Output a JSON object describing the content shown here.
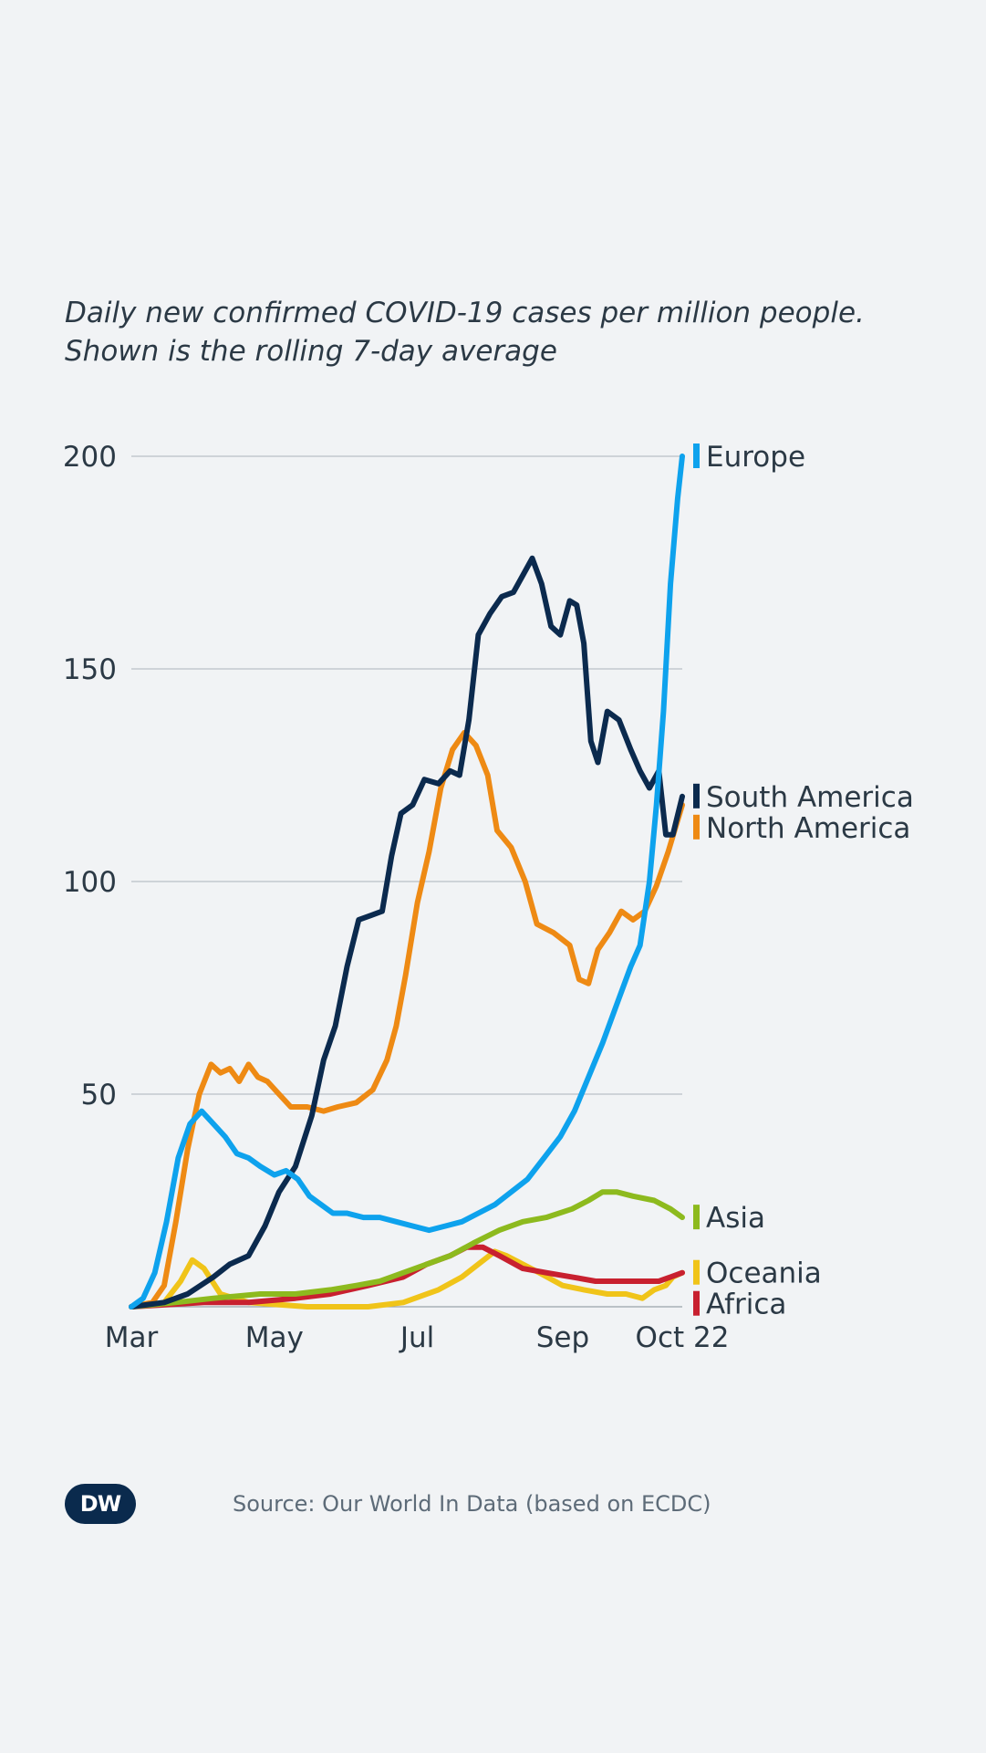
{
  "subtitle_line1": "Daily new confirmed COVID-19 cases per million people.",
  "subtitle_line2": "Shown is the rolling 7-day average",
  "source": "Source: Our World In Data (based on ECDC)",
  "logo_text": "DW",
  "chart_data": {
    "type": "line",
    "ylim": [
      0,
      200
    ],
    "yticks": [
      50,
      100,
      150,
      200
    ],
    "xlim": [
      "2020-03-01",
      "2020-10-22"
    ],
    "xticks": [
      {
        "date": "2020-03-01",
        "label": "Mar"
      },
      {
        "date": "2020-05-01",
        "label": "May"
      },
      {
        "date": "2020-07-01",
        "label": "Jul"
      },
      {
        "date": "2020-09-01",
        "label": "Sep"
      },
      {
        "date": "2020-10-22",
        "label": "Oct 22"
      }
    ],
    "grid": true,
    "legend": "right, at series end",
    "series": [
      {
        "name": "Oceania",
        "color": "#f0c419",
        "points": [
          [
            "2020-03-01",
            0
          ],
          [
            "2020-03-15",
            1
          ],
          [
            "2020-03-22",
            6
          ],
          [
            "2020-03-27",
            11
          ],
          [
            "2020-04-01",
            9
          ],
          [
            "2020-04-08",
            3
          ],
          [
            "2020-04-20",
            1
          ],
          [
            "2020-05-15",
            0
          ],
          [
            "2020-06-10",
            0
          ],
          [
            "2020-06-25",
            1
          ],
          [
            "2020-07-10",
            4
          ],
          [
            "2020-07-20",
            7
          ],
          [
            "2020-07-27",
            10
          ],
          [
            "2020-08-03",
            13
          ],
          [
            "2020-08-08",
            12
          ],
          [
            "2020-08-15",
            10
          ],
          [
            "2020-08-22",
            8
          ],
          [
            "2020-09-01",
            5
          ],
          [
            "2020-09-10",
            4
          ],
          [
            "2020-09-20",
            3
          ],
          [
            "2020-09-28",
            3
          ],
          [
            "2020-10-05",
            2
          ],
          [
            "2020-10-10",
            4
          ],
          [
            "2020-10-15",
            5
          ],
          [
            "2020-10-18",
            7
          ],
          [
            "2020-10-22",
            8
          ]
        ]
      },
      {
        "name": "Africa",
        "color": "#c8202f",
        "points": [
          [
            "2020-03-01",
            0
          ],
          [
            "2020-04-01",
            1
          ],
          [
            "2020-04-20",
            1
          ],
          [
            "2020-05-10",
            2
          ],
          [
            "2020-05-25",
            3
          ],
          [
            "2020-06-10",
            5
          ],
          [
            "2020-06-25",
            7
          ],
          [
            "2020-07-05",
            10
          ],
          [
            "2020-07-15",
            12
          ],
          [
            "2020-07-22",
            14
          ],
          [
            "2020-07-29",
            14
          ],
          [
            "2020-08-05",
            12
          ],
          [
            "2020-08-15",
            9
          ],
          [
            "2020-08-25",
            8
          ],
          [
            "2020-09-05",
            7
          ],
          [
            "2020-09-15",
            6
          ],
          [
            "2020-09-25",
            6
          ],
          [
            "2020-10-05",
            6
          ],
          [
            "2020-10-12",
            6
          ],
          [
            "2020-10-17",
            7
          ],
          [
            "2020-10-22",
            8
          ]
        ]
      },
      {
        "name": "Asia",
        "color": "#8dba1e",
        "points": [
          [
            "2020-03-01",
            0
          ],
          [
            "2020-03-20",
            1
          ],
          [
            "2020-04-05",
            2
          ],
          [
            "2020-04-25",
            3
          ],
          [
            "2020-05-10",
            3
          ],
          [
            "2020-05-25",
            4
          ],
          [
            "2020-06-05",
            5
          ],
          [
            "2020-06-15",
            6
          ],
          [
            "2020-06-25",
            8
          ],
          [
            "2020-07-05",
            10
          ],
          [
            "2020-07-15",
            12
          ],
          [
            "2020-07-25",
            15
          ],
          [
            "2020-08-05",
            18
          ],
          [
            "2020-08-15",
            20
          ],
          [
            "2020-08-25",
            21
          ],
          [
            "2020-09-05",
            23
          ],
          [
            "2020-09-12",
            25
          ],
          [
            "2020-09-18",
            27
          ],
          [
            "2020-09-24",
            27
          ],
          [
            "2020-10-01",
            26
          ],
          [
            "2020-10-10",
            25
          ],
          [
            "2020-10-17",
            23
          ],
          [
            "2020-10-22",
            21
          ]
        ]
      },
      {
        "name": "North America",
        "color": "#ee8a14",
        "points": [
          [
            "2020-03-01",
            0
          ],
          [
            "2020-03-10",
            1
          ],
          [
            "2020-03-15",
            5
          ],
          [
            "2020-03-20",
            20
          ],
          [
            "2020-03-25",
            37
          ],
          [
            "2020-03-30",
            50
          ],
          [
            "2020-04-04",
            57
          ],
          [
            "2020-04-08",
            55
          ],
          [
            "2020-04-12",
            56
          ],
          [
            "2020-04-16",
            53
          ],
          [
            "2020-04-20",
            57
          ],
          [
            "2020-04-24",
            54
          ],
          [
            "2020-04-28",
            53
          ],
          [
            "2020-05-03",
            50
          ],
          [
            "2020-05-08",
            47
          ],
          [
            "2020-05-15",
            47
          ],
          [
            "2020-05-22",
            46
          ],
          [
            "2020-05-28",
            47
          ],
          [
            "2020-06-05",
            48
          ],
          [
            "2020-06-12",
            51
          ],
          [
            "2020-06-18",
            58
          ],
          [
            "2020-06-22",
            66
          ],
          [
            "2020-06-26",
            78
          ],
          [
            "2020-07-01",
            95
          ],
          [
            "2020-07-06",
            107
          ],
          [
            "2020-07-11",
            122
          ],
          [
            "2020-07-16",
            131
          ],
          [
            "2020-07-21",
            135
          ],
          [
            "2020-07-26",
            132
          ],
          [
            "2020-07-31",
            125
          ],
          [
            "2020-08-04",
            112
          ],
          [
            "2020-08-10",
            108
          ],
          [
            "2020-08-16",
            100
          ],
          [
            "2020-08-21",
            90
          ],
          [
            "2020-08-28",
            88
          ],
          [
            "2020-09-04",
            85
          ],
          [
            "2020-09-08",
            77
          ],
          [
            "2020-09-12",
            76
          ],
          [
            "2020-09-16",
            84
          ],
          [
            "2020-09-21",
            88
          ],
          [
            "2020-09-26",
            93
          ],
          [
            "2020-10-01",
            91
          ],
          [
            "2020-10-06",
            93
          ],
          [
            "2020-10-11",
            99
          ],
          [
            "2020-10-16",
            107
          ],
          [
            "2020-10-22",
            118
          ]
        ]
      },
      {
        "name": "South America",
        "color": "#0b2a4e",
        "points": [
          [
            "2020-03-01",
            0
          ],
          [
            "2020-03-15",
            1
          ],
          [
            "2020-03-25",
            3
          ],
          [
            "2020-04-05",
            7
          ],
          [
            "2020-04-12",
            10
          ],
          [
            "2020-04-20",
            12
          ],
          [
            "2020-04-27",
            19
          ],
          [
            "2020-05-03",
            27
          ],
          [
            "2020-05-10",
            33
          ],
          [
            "2020-05-17",
            45
          ],
          [
            "2020-05-22",
            58
          ],
          [
            "2020-05-27",
            66
          ],
          [
            "2020-06-01",
            80
          ],
          [
            "2020-06-06",
            91
          ],
          [
            "2020-06-11",
            92
          ],
          [
            "2020-06-16",
            93
          ],
          [
            "2020-06-20",
            106
          ],
          [
            "2020-06-24",
            116
          ],
          [
            "2020-06-29",
            118
          ],
          [
            "2020-07-04",
            124
          ],
          [
            "2020-07-10",
            123
          ],
          [
            "2020-07-15",
            126
          ],
          [
            "2020-07-19",
            125
          ],
          [
            "2020-07-23",
            138
          ],
          [
            "2020-07-27",
            158
          ],
          [
            "2020-08-01",
            163
          ],
          [
            "2020-08-06",
            167
          ],
          [
            "2020-08-11",
            168
          ],
          [
            "2020-08-15",
            172
          ],
          [
            "2020-08-19",
            176
          ],
          [
            "2020-08-23",
            170
          ],
          [
            "2020-08-27",
            160
          ],
          [
            "2020-08-31",
            158
          ],
          [
            "2020-09-04",
            166
          ],
          [
            "2020-09-07",
            165
          ],
          [
            "2020-09-10",
            156
          ],
          [
            "2020-09-13",
            133
          ],
          [
            "2020-09-16",
            128
          ],
          [
            "2020-09-20",
            140
          ],
          [
            "2020-09-25",
            138
          ],
          [
            "2020-09-30",
            131
          ],
          [
            "2020-10-04",
            126
          ],
          [
            "2020-10-08",
            122
          ],
          [
            "2020-10-12",
            126
          ],
          [
            "2020-10-15",
            111
          ],
          [
            "2020-10-18",
            111
          ],
          [
            "2020-10-22",
            120
          ]
        ]
      },
      {
        "name": "Europe",
        "color": "#0ea2ed",
        "points": [
          [
            "2020-03-01",
            0
          ],
          [
            "2020-03-06",
            2
          ],
          [
            "2020-03-11",
            8
          ],
          [
            "2020-03-16",
            20
          ],
          [
            "2020-03-21",
            35
          ],
          [
            "2020-03-26",
            43
          ],
          [
            "2020-03-31",
            46
          ],
          [
            "2020-04-05",
            43
          ],
          [
            "2020-04-10",
            40
          ],
          [
            "2020-04-15",
            36
          ],
          [
            "2020-04-20",
            35
          ],
          [
            "2020-04-25",
            33
          ],
          [
            "2020-05-01",
            31
          ],
          [
            "2020-05-06",
            32
          ],
          [
            "2020-05-11",
            30
          ],
          [
            "2020-05-16",
            26
          ],
          [
            "2020-05-21",
            24
          ],
          [
            "2020-05-26",
            22
          ],
          [
            "2020-06-01",
            22
          ],
          [
            "2020-06-08",
            21
          ],
          [
            "2020-06-15",
            21
          ],
          [
            "2020-06-22",
            20
          ],
          [
            "2020-06-29",
            19
          ],
          [
            "2020-07-06",
            18
          ],
          [
            "2020-07-13",
            19
          ],
          [
            "2020-07-20",
            20
          ],
          [
            "2020-07-27",
            22
          ],
          [
            "2020-08-03",
            24
          ],
          [
            "2020-08-10",
            27
          ],
          [
            "2020-08-17",
            30
          ],
          [
            "2020-08-24",
            35
          ],
          [
            "2020-08-31",
            40
          ],
          [
            "2020-09-06",
            46
          ],
          [
            "2020-09-12",
            54
          ],
          [
            "2020-09-18",
            62
          ],
          [
            "2020-09-24",
            71
          ],
          [
            "2020-09-30",
            80
          ],
          [
            "2020-10-04",
            85
          ],
          [
            "2020-10-08",
            100
          ],
          [
            "2020-10-11",
            118
          ],
          [
            "2020-10-14",
            140
          ],
          [
            "2020-10-17",
            170
          ],
          [
            "2020-10-20",
            190
          ],
          [
            "2020-10-22",
            200
          ]
        ]
      }
    ]
  }
}
